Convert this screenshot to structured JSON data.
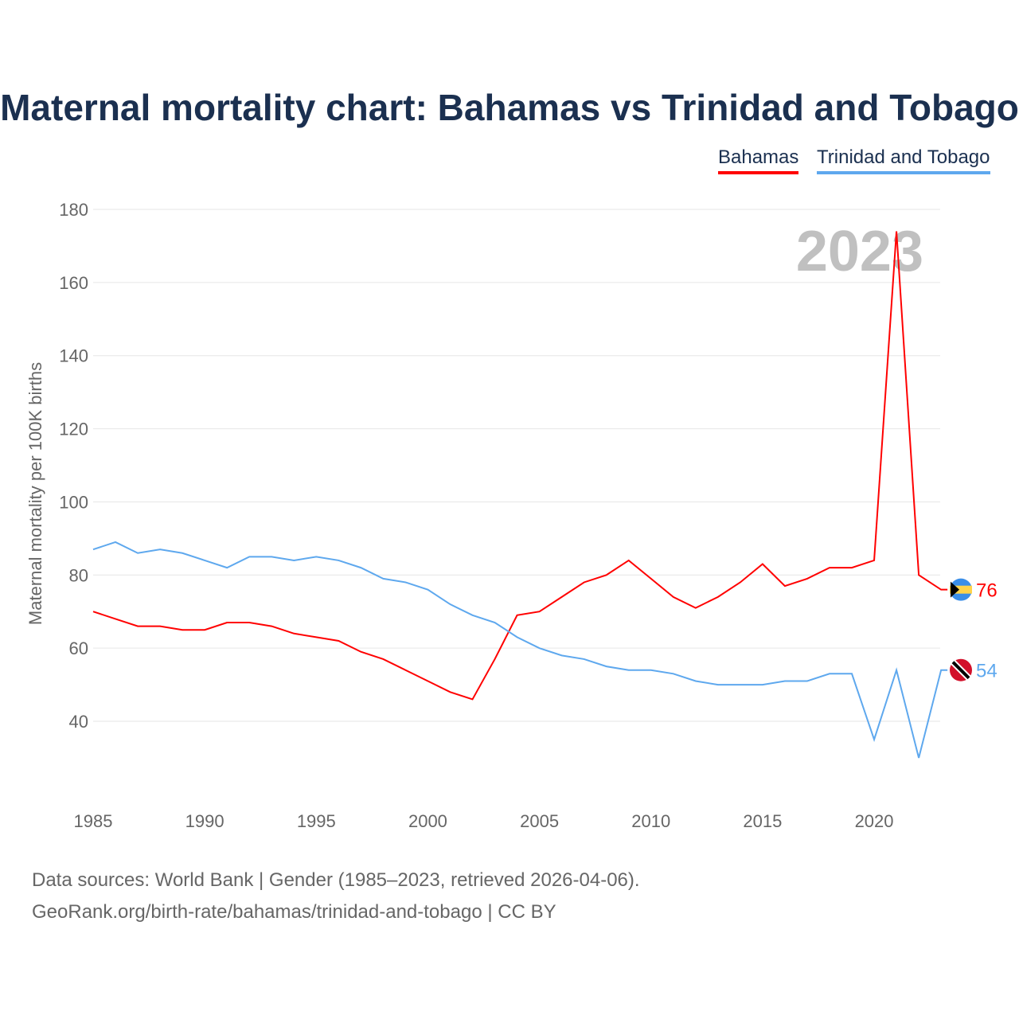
{
  "chart_data": {
    "type": "line",
    "title": "Maternal mortality chart: Bahamas vs Trinidad and Tobago",
    "ylabel": "Maternal mortality per 100K births",
    "xlabel": "",
    "ylim": [
      20,
      180
    ],
    "xlim": [
      1985,
      2023
    ],
    "yticks": [
      40,
      60,
      80,
      100,
      120,
      140,
      160,
      180
    ],
    "xticks": [
      1985,
      1990,
      1995,
      2000,
      2005,
      2010,
      2015,
      2020
    ],
    "grid": true,
    "legend_position": "top-right",
    "year_label": "2023",
    "x": [
      1985,
      1986,
      1987,
      1988,
      1989,
      1990,
      1991,
      1992,
      1993,
      1994,
      1995,
      1996,
      1997,
      1998,
      1999,
      2000,
      2001,
      2002,
      2003,
      2004,
      2005,
      2006,
      2007,
      2008,
      2009,
      2010,
      2011,
      2012,
      2013,
      2014,
      2015,
      2016,
      2017,
      2018,
      2019,
      2020,
      2021,
      2022,
      2023
    ],
    "series": [
      {
        "name": "Bahamas",
        "color": "#ff0000",
        "end_label": "76",
        "values": [
          70,
          68,
          66,
          66,
          65,
          65,
          67,
          67,
          66,
          64,
          63,
          62,
          59,
          57,
          54,
          51,
          48,
          46,
          57,
          69,
          70,
          74,
          78,
          80,
          84,
          79,
          74,
          71,
          74,
          78,
          83,
          77,
          79,
          82,
          82,
          84,
          174,
          80,
          76
        ]
      },
      {
        "name": "Trinidad and Tobago",
        "color": "#5ea8ee",
        "end_label": "54",
        "values": [
          87,
          89,
          86,
          87,
          86,
          84,
          82,
          85,
          85,
          84,
          85,
          84,
          82,
          79,
          78,
          76,
          72,
          69,
          67,
          63,
          60,
          58,
          57,
          55,
          54,
          54,
          53,
          51,
          50,
          50,
          50,
          51,
          51,
          53,
          53,
          35,
          54,
          30,
          54
        ]
      }
    ]
  },
  "footer": {
    "line1": "Data sources: World Bank | Gender (1985–2023, retrieved 2026-04-06).",
    "line2": "GeoRank.org/birth-rate/bahamas/trinidad-and-tobago | CC BY"
  }
}
